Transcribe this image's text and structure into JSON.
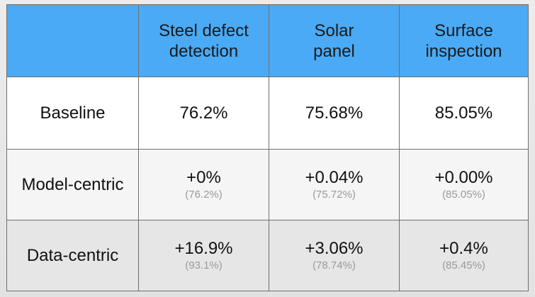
{
  "table": {
    "columns": [
      "",
      "Steel defect\ndetection",
      "Solar\npanel",
      "Surface\ninspection"
    ],
    "rows": [
      {
        "label": "Baseline",
        "cells": [
          {
            "value": "76.2%",
            "detail": null
          },
          {
            "value": "75.68%",
            "detail": null
          },
          {
            "value": "85.05%",
            "detail": null
          }
        ]
      },
      {
        "label": "Model-centric",
        "cells": [
          {
            "value": "+0%",
            "detail": "(76.2%)"
          },
          {
            "value": "+0.04%",
            "detail": "(75.72%)"
          },
          {
            "value": "+0.00%",
            "detail": "(85.05%)"
          }
        ]
      },
      {
        "label": "Data-centric",
        "cells": [
          {
            "value": "+16.9%",
            "detail": "(93.1%)"
          },
          {
            "value": "+3.06%",
            "detail": "(78.74%)"
          },
          {
            "value": "+0.4%",
            "detail": "(85.45%)"
          }
        ]
      }
    ]
  },
  "colors": {
    "header_background": "#4aaaf5",
    "grid_line": "#6f6f6f",
    "detail_text": "#9a9a9a"
  }
}
